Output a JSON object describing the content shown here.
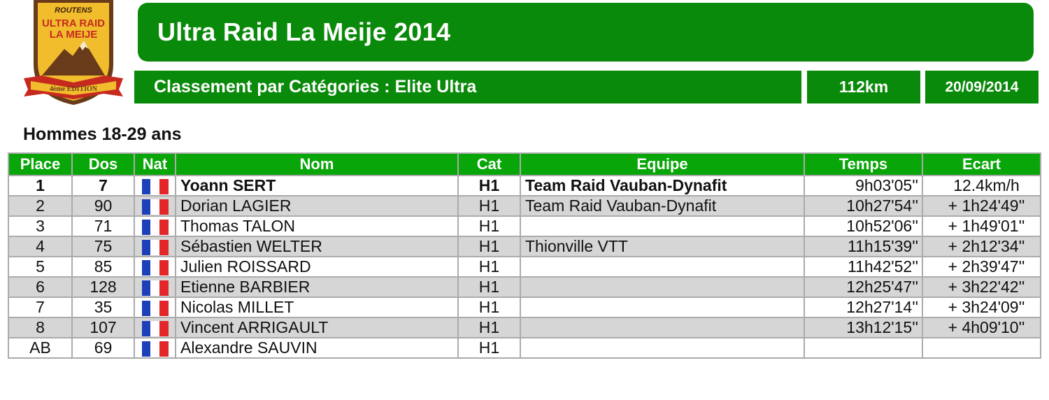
{
  "header": {
    "logo": {
      "brand": "ROUTENS",
      "line1": "ULTRA RAID",
      "line2": "LA MEIJE",
      "edition": "4ème EDITION",
      "colors": {
        "gold": "#f1bd2c",
        "orange": "#e8921d",
        "brown": "#6a3b1a",
        "red": "#c62a1f"
      }
    },
    "title": "Ultra Raid La Meije 2014",
    "category_label": "Classement par Catégories : Elite Ultra",
    "distance": "112km",
    "date": "20/09/2014"
  },
  "section_title": "Hommes 18-29 ans",
  "table": {
    "columns": [
      "Place",
      "Dos",
      "Nat",
      "Nom",
      "Cat",
      "Equipe",
      "Temps",
      "Ecart"
    ],
    "rows": [
      {
        "place": "1",
        "dos": "7",
        "nat": "France",
        "nom": "Yoann SERT",
        "cat": "H1",
        "equipe": "Team Raid Vauban-Dynafit",
        "temps": "9h03'05''",
        "ecart": "12.4km/h"
      },
      {
        "place": "2",
        "dos": "90",
        "nat": "France",
        "nom": "Dorian LAGIER",
        "cat": "H1",
        "equipe": "Team Raid Vauban-Dynafit",
        "temps": "10h27'54''",
        "ecart": "+ 1h24'49''"
      },
      {
        "place": "3",
        "dos": "71",
        "nat": "France",
        "nom": "Thomas TALON",
        "cat": "H1",
        "equipe": "",
        "temps": "10h52'06''",
        "ecart": "+ 1h49'01''"
      },
      {
        "place": "4",
        "dos": "75",
        "nat": "France",
        "nom": "Sébastien WELTER",
        "cat": "H1",
        "equipe": "Thionville VTT",
        "temps": "11h15'39''",
        "ecart": "+ 2h12'34''"
      },
      {
        "place": "5",
        "dos": "85",
        "nat": "France",
        "nom": "Julien ROISSARD",
        "cat": "H1",
        "equipe": "",
        "temps": "11h42'52''",
        "ecart": "+ 2h39'47''"
      },
      {
        "place": "6",
        "dos": "128",
        "nat": "France",
        "nom": "Etienne BARBIER",
        "cat": "H1",
        "equipe": "",
        "temps": "12h25'47''",
        "ecart": "+ 3h22'42''"
      },
      {
        "place": "7",
        "dos": "35",
        "nat": "France",
        "nom": "Nicolas MILLET",
        "cat": "H1",
        "equipe": "",
        "temps": "12h27'14''",
        "ecart": "+ 3h24'09''"
      },
      {
        "place": "8",
        "dos": "107",
        "nat": "France",
        "nom": "Vincent ARRIGAULT",
        "cat": "H1",
        "equipe": "",
        "temps": "13h12'15''",
        "ecart": "+ 4h09'10''"
      },
      {
        "place": "AB",
        "dos": "69",
        "nat": "France",
        "nom": "Alexandre SAUVIN",
        "cat": "H1",
        "equipe": "",
        "temps": "",
        "ecart": ""
      }
    ]
  },
  "colors": {
    "title_green": "#0a8a0a",
    "header_green": "#09a609",
    "row_alt": "#d6d6d6",
    "flag": [
      "#1d3fb8",
      "#ffffff",
      "#e2262a"
    ]
  }
}
